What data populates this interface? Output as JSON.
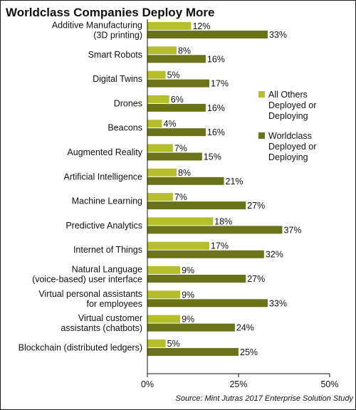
{
  "chart_data": {
    "type": "bar",
    "orientation": "horizontal",
    "title": "Worldclass Companies Deploy More",
    "source": "Source: Mint Jutras 2017 Enterprise Solution Study",
    "categories": [
      [
        "Additive Manufacturing",
        "(3D printing)"
      ],
      [
        "Smart Robots"
      ],
      [
        "Digital Twins"
      ],
      [
        "Drones"
      ],
      [
        "Beacons"
      ],
      [
        "Augmented Reality"
      ],
      [
        "Artificial Intelligence"
      ],
      [
        "Machine Learning"
      ],
      [
        "Predictive Analytics"
      ],
      [
        "Internet of Things"
      ],
      [
        "Natural Language",
        "(voice-based) user interface"
      ],
      [
        "Virtual personal assistants",
        "for employees"
      ],
      [
        "Virtual customer",
        "assistants (chatbots)"
      ],
      [
        "Blockchain (distributed ledgers)"
      ]
    ],
    "series": [
      {
        "name": [
          "All Others",
          "Deployed or",
          "Deploying"
        ],
        "color": "#b5bf2c",
        "values": [
          12,
          8,
          5,
          6,
          4,
          7,
          8,
          7,
          18,
          17,
          9,
          9,
          9,
          5
        ]
      },
      {
        "name": [
          "Worldclass",
          "Deployed or",
          "Deploying"
        ],
        "color": "#6b7318",
        "values": [
          33,
          16,
          17,
          16,
          16,
          15,
          21,
          27,
          37,
          32,
          27,
          33,
          24,
          25
        ]
      }
    ],
    "value_suffix": "%",
    "xlim": [
      0,
      50
    ],
    "xticks": [
      {
        "value": 0,
        "label": "0%"
      },
      {
        "value": 25,
        "label": "25%"
      },
      {
        "value": 50,
        "label": "50%"
      }
    ],
    "legend_position": "right",
    "grid": false
  }
}
